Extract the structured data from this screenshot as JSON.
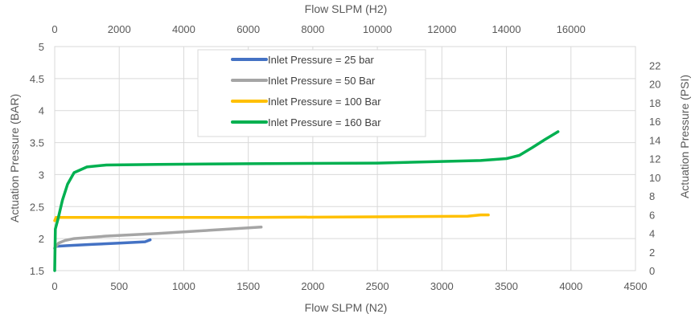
{
  "chart_data": {
    "type": "line",
    "title": "",
    "xlabel": "Flow SLPM (N2)",
    "x2label": "Flow SLPM (H2)",
    "ylabel": "Actuation Pressure (BAR)",
    "y2label": "Actuation Pressure (PSI)",
    "xlim": [
      0,
      4500
    ],
    "x2lim": [
      0,
      18000
    ],
    "ylim": [
      1.5,
      5
    ],
    "y2lim": [
      0,
      24
    ],
    "xticks": [
      "0",
      "500",
      "1000",
      "1500",
      "2000",
      "2500",
      "3000",
      "3500",
      "4000",
      "4500"
    ],
    "x2ticks": [
      "0",
      "2000",
      "4000",
      "6000",
      "8000",
      "10000",
      "12000",
      "14000",
      "16000"
    ],
    "yticks": [
      "1.5",
      "2",
      "2.5",
      "3",
      "3.5",
      "4",
      "4.5",
      "5"
    ],
    "y2ticks": [
      "0",
      "2",
      "4",
      "6",
      "8",
      "10",
      "12",
      "14",
      "16",
      "18",
      "20",
      "22"
    ],
    "grid": true,
    "legend_position": "top-center",
    "series": [
      {
        "name": "Inlet Pressure = 25 bar",
        "color": "#4472C4",
        "x": [
          0,
          10,
          100,
          300,
          500,
          700,
          740
        ],
        "y": [
          1.85,
          1.88,
          1.89,
          1.91,
          1.93,
          1.95,
          1.98
        ]
      },
      {
        "name": "Inlet Pressure = 50 Bar",
        "color": "#A5A5A5",
        "x": [
          0,
          30,
          80,
          150,
          400,
          800,
          1200,
          1600
        ],
        "y": [
          1.85,
          1.93,
          1.97,
          2.0,
          2.04,
          2.08,
          2.13,
          2.18
        ]
      },
      {
        "name": "Inlet Pressure = 100 Bar",
        "color": "#FFC000",
        "x": [
          0,
          10,
          100,
          500,
          1500,
          2500,
          3200,
          3300,
          3360
        ],
        "y": [
          2.28,
          2.33,
          2.33,
          2.33,
          2.33,
          2.34,
          2.35,
          2.37,
          2.37
        ]
      },
      {
        "name": "Inlet Pressure = 160 Bar",
        "color": "#00B050",
        "x": [
          0,
          5,
          25,
          60,
          100,
          150,
          250,
          400,
          800,
          1500,
          2500,
          3300,
          3500,
          3600,
          3700,
          3800,
          3900
        ],
        "y": [
          1.5,
          2.15,
          2.3,
          2.6,
          2.85,
          3.03,
          3.12,
          3.15,
          3.16,
          3.17,
          3.18,
          3.22,
          3.25,
          3.3,
          3.42,
          3.55,
          3.67
        ]
      }
    ]
  }
}
